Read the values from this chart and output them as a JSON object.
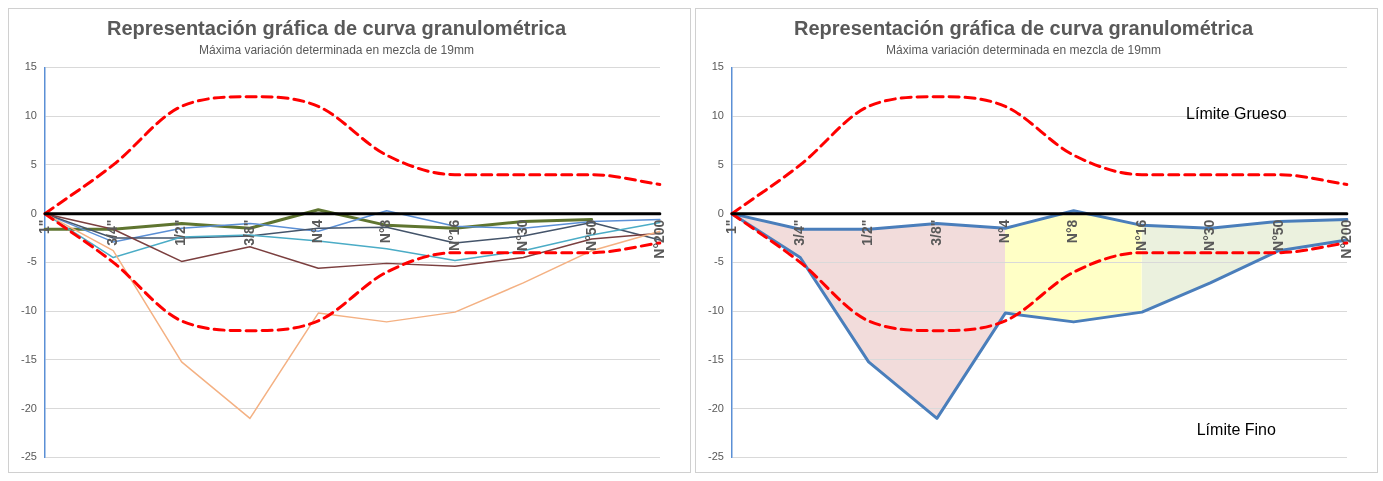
{
  "chart_data": [
    {
      "type": "line",
      "title": "Representación gráfica de curva granulométrica",
      "subtitle": "Máxima variación determinada en mezcla de 19mm",
      "categories": [
        "1\"",
        "3/4\"",
        "1/2\"",
        "3/8\"",
        "N°4",
        "N°8",
        "N°16",
        "N°30",
        "N°50",
        "N°200"
      ],
      "ylim": [
        -25,
        15
      ],
      "yticks": [
        -25,
        -20,
        -15,
        -10,
        -5,
        0,
        5,
        10,
        15
      ],
      "grid": "y",
      "legend": false,
      "series": [
        {
          "color": "#000000",
          "values": [
            0,
            0,
            0,
            0,
            0,
            0,
            0,
            0,
            0,
            0
          ],
          "line_style": "solid"
        },
        {
          "color": "#ff0000",
          "values": [
            0,
            5,
            11,
            12,
            11,
            6,
            4,
            4,
            4,
            3
          ],
          "line_style": "dashed"
        },
        {
          "color": "#ff0000",
          "values": [
            0,
            -5,
            -11,
            -12,
            -11,
            -6,
            -4,
            -4,
            -4,
            -3
          ],
          "line_style": "dashed"
        },
        {
          "color": "#f4b183",
          "values": [
            0,
            -3.8,
            -15.2,
            -21,
            -10.2,
            -11.1,
            -10.1,
            -7.1,
            -3.8,
            -1.8
          ],
          "line_style": "solid"
        },
        {
          "color": "#7b3f3f",
          "values": [
            0,
            -1.6,
            -4.9,
            -3.4,
            -5.6,
            -5.1,
            -5.4,
            -4.5,
            -2.6,
            -2.0
          ],
          "line_style": "solid"
        },
        {
          "color": "#4bacc6",
          "values": [
            0,
            -4.5,
            -2.4,
            -2.2,
            -2.8,
            -3.6,
            -4.8,
            -3.8,
            -2.2,
            -0.9
          ],
          "line_style": "solid"
        },
        {
          "color": "#44546a",
          "values": [
            0,
            -2.5,
            -2.5,
            -2.3,
            -1.5,
            -1.4,
            -3.0,
            -2.3,
            -0.9,
            -2.7
          ],
          "line_style": "solid"
        },
        {
          "color": "#5b8fd5",
          "values": [
            0,
            -2.9,
            -1.5,
            -1.0,
            -1.8,
            0.3,
            -1.3,
            -1.5,
            -0.8,
            -0.6
          ],
          "line_style": "solid"
        },
        {
          "color": "#5f7530",
          "values": [
            -1.6,
            -1.6,
            -1.0,
            -1.5,
            0.4,
            -1.2,
            -1.5,
            -0.8,
            -0.6,
            null
          ],
          "line_style": "solid"
        }
      ]
    },
    {
      "type": "line",
      "title": "Representación gráfica de curva granulométrica",
      "subtitle": "Máxima variación determinada en mezcla de 19mm",
      "categories": [
        "1\"",
        "3/4\"",
        "1/2\"",
        "3/8\"",
        "N°4",
        "N°8",
        "N°16",
        "N°30",
        "N°50",
        "N°200"
      ],
      "ylim": [
        -25,
        15
      ],
      "yticks": [
        -25,
        -20,
        -15,
        -10,
        -5,
        0,
        5,
        10,
        15
      ],
      "grid": "y",
      "legend": false,
      "series": [
        {
          "color": "#000000",
          "values": [
            0,
            0,
            0,
            0,
            0,
            0,
            0,
            0,
            0,
            0
          ],
          "line_style": "solid"
        },
        {
          "color": "#ff0000",
          "values": [
            0,
            5,
            11,
            12,
            11,
            6,
            4,
            4,
            4,
            3
          ],
          "line_style": "dashed"
        },
        {
          "color": "#ff0000",
          "values": [
            0,
            -5,
            -11,
            -12,
            -11,
            -6,
            -4,
            -4,
            -4,
            -3
          ],
          "line_style": "dashed"
        },
        {
          "color": "#4a7ebb",
          "values": [
            0,
            -1.6,
            -1.6,
            -1.0,
            -1.5,
            0.3,
            -1.2,
            -1.5,
            -0.8,
            -0.6
          ],
          "line_style": "solid"
        },
        {
          "color": "#4a7ebb",
          "values": [
            0,
            -4.5,
            -15.2,
            -21,
            -10.2,
            -11.1,
            -10.1,
            -7.1,
            -3.8,
            -2.7
          ],
          "line_style": "solid"
        }
      ],
      "annotations": [
        "Límite Grueso",
        "Límite Fino"
      ]
    }
  ]
}
